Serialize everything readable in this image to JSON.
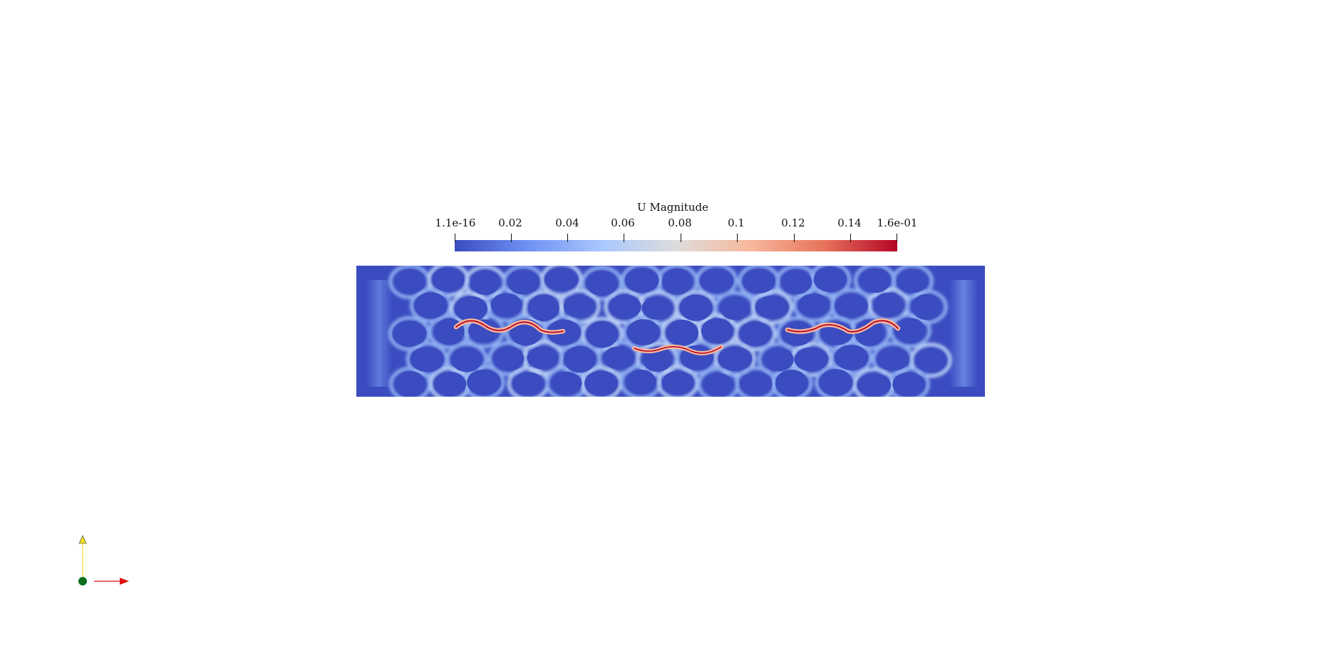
{
  "colorbar": {
    "title": "U Magnitude",
    "ticks": [
      "1.1e-16",
      "0.02",
      "0.04",
      "0.06",
      "0.08",
      "0.1",
      "0.12",
      "0.14",
      "1.6e-01"
    ],
    "tick_values": [
      1.1e-16,
      0.02,
      0.04,
      0.06,
      0.08,
      0.1,
      0.12,
      0.14,
      0.16
    ],
    "range": [
      1.1e-16,
      0.16
    ],
    "colormap": [
      "#3b4cc0",
      "#6f92f3",
      "#aac7fd",
      "#dddcdc",
      "#f7b89c",
      "#e7745b",
      "#b40426"
    ]
  },
  "field": {
    "background_color": "#3b4cc0",
    "colormap_name": "Cool to Warm"
  },
  "axes_orientation": {
    "x_color": "#e01010",
    "y_color": "#f0e020",
    "origin_color": "#0a6e1e"
  }
}
